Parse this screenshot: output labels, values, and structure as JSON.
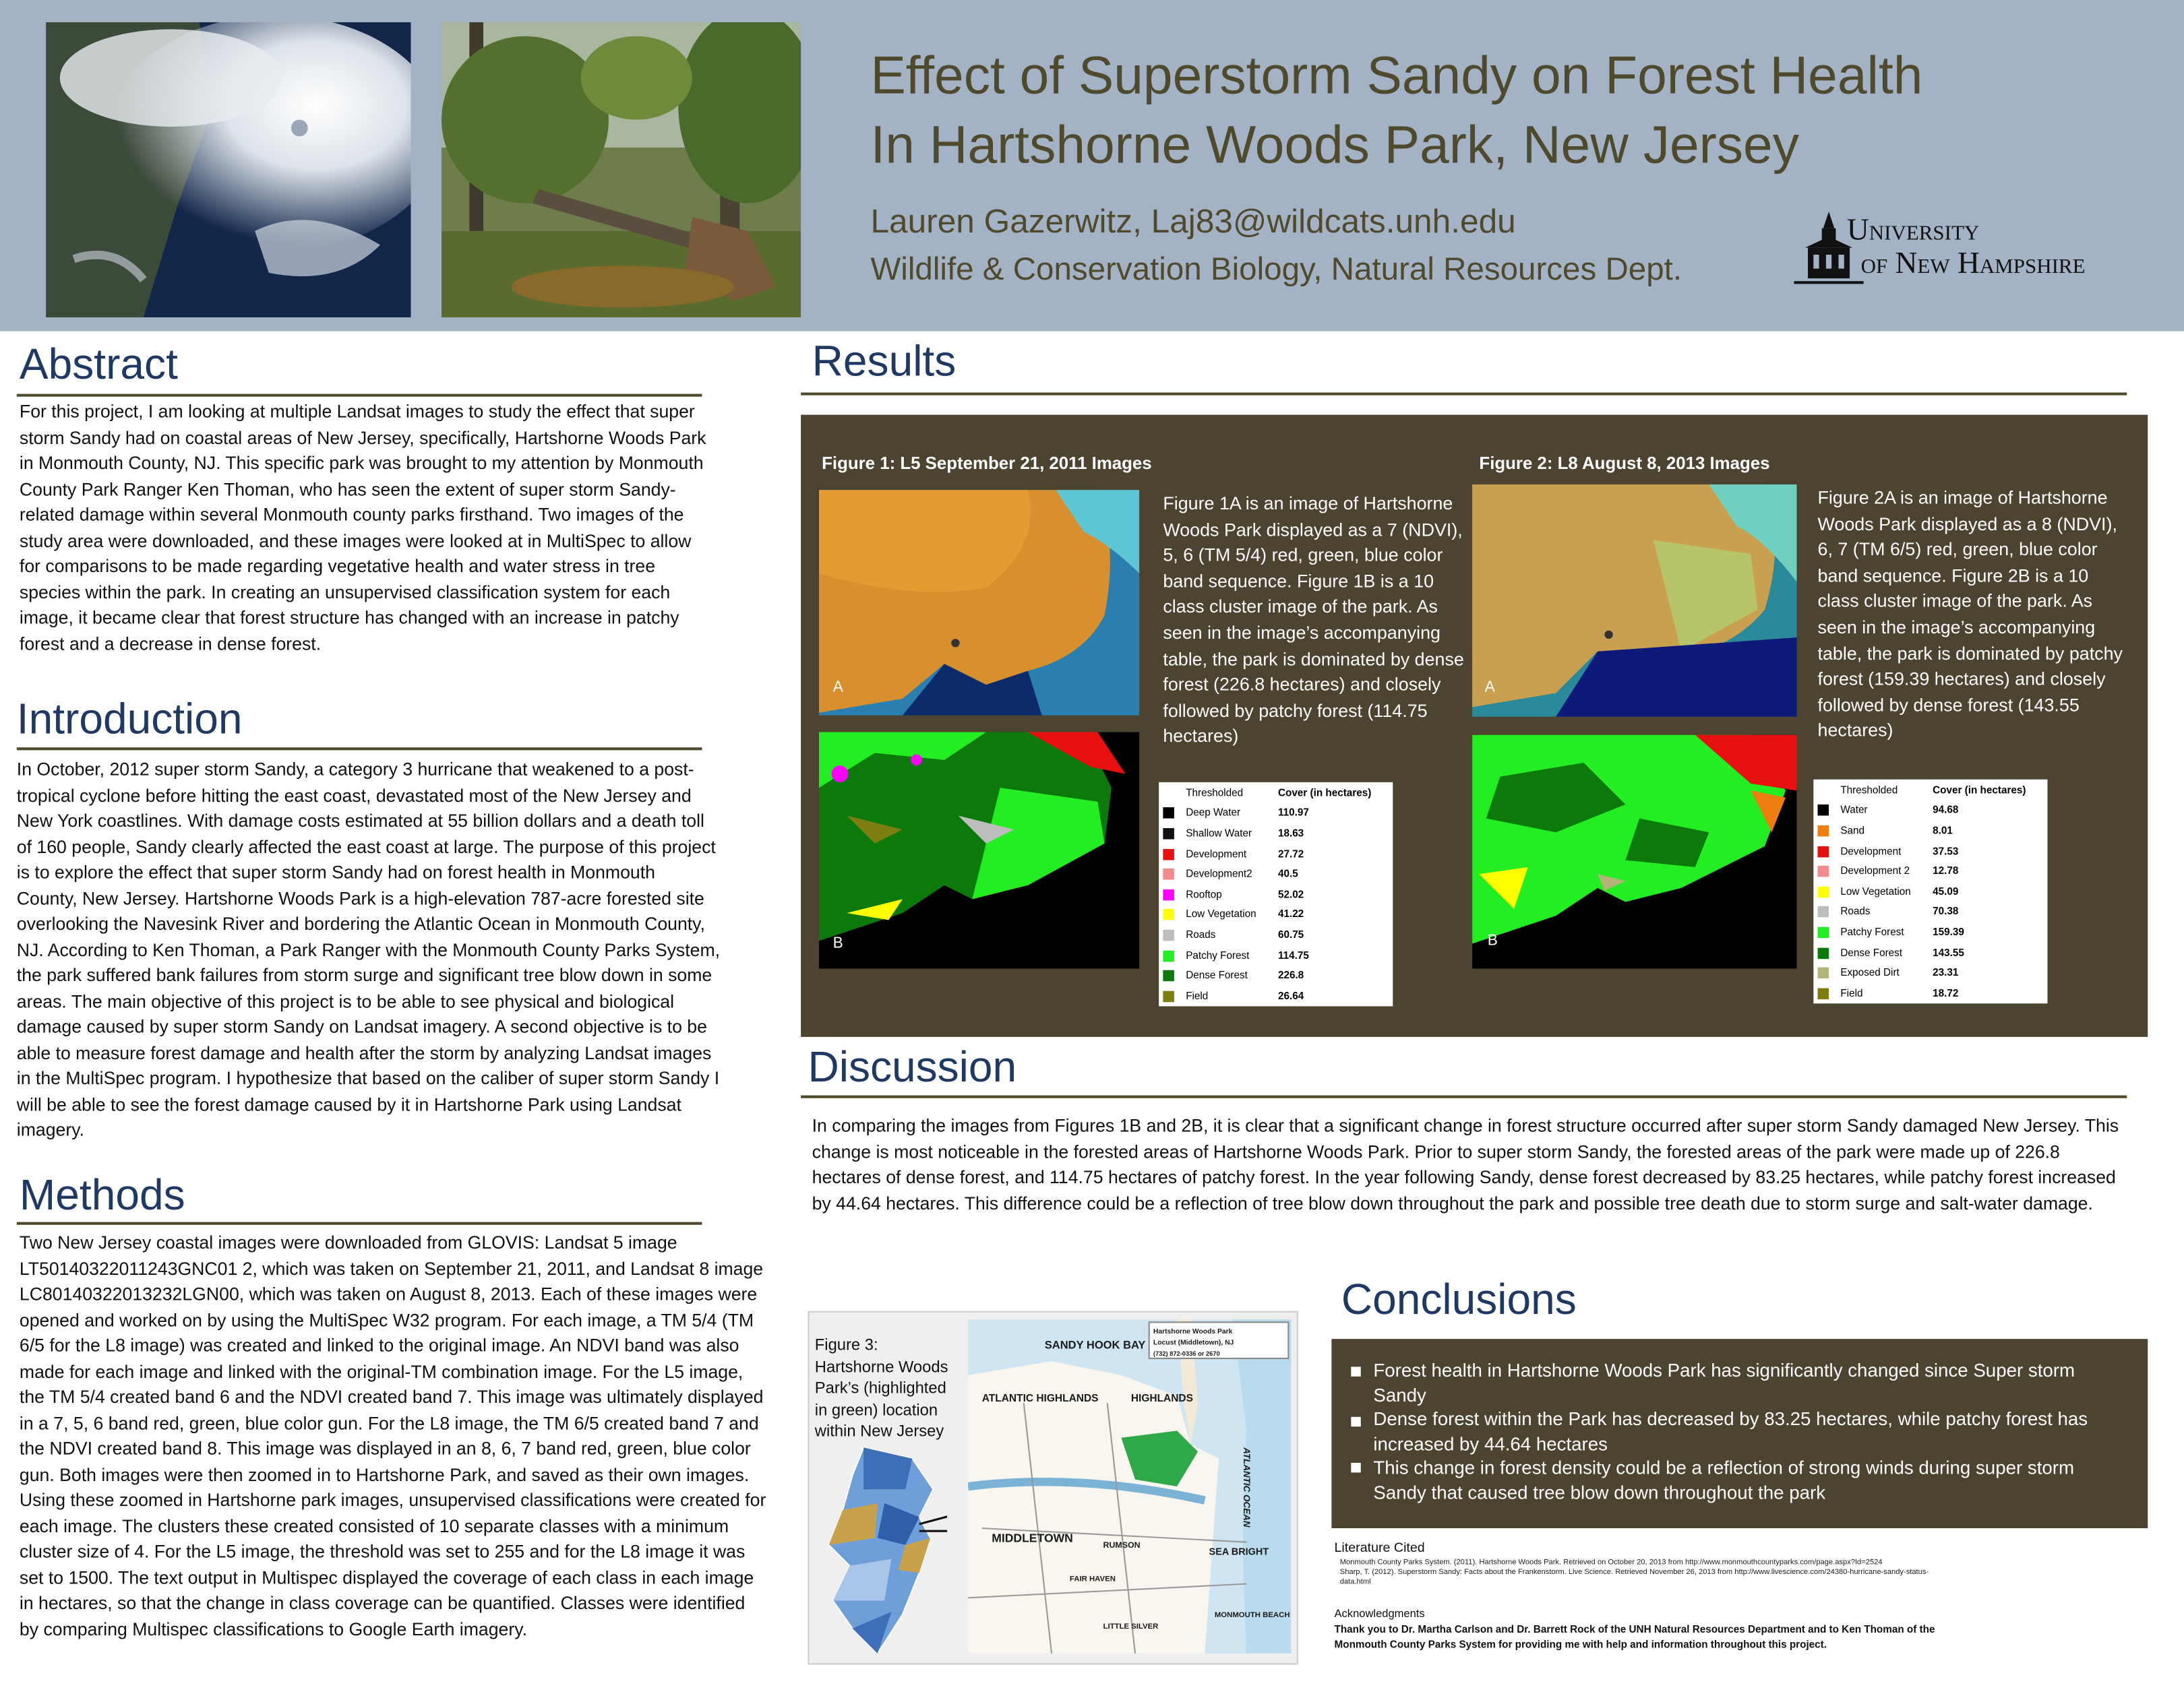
{
  "header": {
    "title": [
      "Effect of Superstorm Sandy on Forest Health",
      "In Hartshorne Woods Park, New Jersey"
    ],
    "author": "Lauren Gazerwitz, Laj83@wildcats.unh.edu",
    "affiliation": "Wildlife & Conservation Biology, Natural Resources Dept.",
    "logo": [
      "University",
      "of New Hampshire"
    ]
  },
  "abstract": {
    "heading": "Abstract",
    "text": "For this project, I am looking at multiple Landsat images to study the effect that super storm Sandy had on coastal areas of New Jersey, specifically, Hartshorne Woods Park in Monmouth County, NJ. This specific park was brought to my attention by Monmouth County Park Ranger Ken Thoman, who has seen the extent of super storm Sandy-related damage within several Monmouth county parks firsthand. Two images of the study area were downloaded, and these images were looked at in MultiSpec to allow for comparisons to be made regarding vegetative health and water stress in tree species within the park. In creating  an unsupervised classification system for each image, it became clear that forest structure has changed with an increase in patchy forest and a decrease in dense forest."
  },
  "introduction": {
    "heading": "Introduction",
    "text": "In October, 2012 super storm Sandy, a category 3 hurricane that weakened to a post-tropical cyclone before hitting the east coast, devastated most of the New Jersey and New York coastlines. With damage costs estimated at 55 billion dollars and a death toll of 160 people, Sandy clearly affected the east coast at large. The purpose of this project is to explore the effect that super storm Sandy had on forest health in Monmouth County, New Jersey. Hartshorne Woods Park is a high-elevation 787-acre forested site overlooking the Navesink River and bordering the Atlantic Ocean in Monmouth County, NJ. According to Ken Thoman, a Park Ranger with the Monmouth County Parks System, the park suffered bank failures from storm surge and significant tree blow down in some areas. The main objective of this project is to be able to see physical and biological damage caused by super storm Sandy on Landsat imagery. A second objective is to be able to measure forest damage and health after the storm by analyzing Landsat images in the MultiSpec program. I hypothesize that based on the caliber of super storm Sandy I will be able to see the forest damage caused by it in Hartshorne Park using Landsat imagery."
  },
  "methods": {
    "heading": "Methods",
    "text": "Two New Jersey coastal images were downloaded from GLOVIS: Landsat 5 image LT50140322011243GNC01 2, which was taken on September 21, 2011, and Landsat 8 image LC80140322013232LGN00, which was taken on August 8, 2013. Each of these images were opened and worked on by using the MultiSpec W32 program. For each image, a TM 5/4 (TM 6/5 for the L8 image) was created and linked to the original image. An NDVI band was also made for each image and linked with the original-TM combination image. For the L5 image, the TM 5/4 created band 6 and the NDVI created band 7. This image was ultimately displayed in a 7, 5, 6 band red, green, blue color gun. For the L8 image, the TM 6/5 created band 7 and the NDVI created band 8. This image was displayed in an 8, 6, 7 band red, green, blue color gun. Both images were then zoomed in to Hartshorne Park, and saved as their own images. Using these zoomed in Hartshorne park images, unsupervised classifications were created for each image. The clusters these created consisted of 10 separate classes with a minimum cluster size of 4. For the L5 image, the threshold was set to 255 and for the L8 image it was set to 1500. The text output in Multispec displayed the coverage of each class in each image in hectares, so that the change in class coverage can be quantified. Classes were identified by comparing Multispec classifications to Google Earth imagery."
  },
  "results": {
    "heading": "Results",
    "figures": [
      {
        "title": "Figure 1: L5 September 21, 2011 Images",
        "labels": [
          "A",
          "B"
        ],
        "caption": "Figure 1A is an image of Hartshorne Woods Park displayed as a 7 (NDVI), 5, 6 (TM 5/4) red, green, blue color band sequence. Figure 1B is a 10 class cluster image of the park. As seen in the image’s accompanying table,  the park is dominated  by dense forest (226.8 hectares) and closely followed by patchy forest (114.75 hectares)",
        "table": {
          "header": [
            "Thresholded",
            "Cover (in hectares)"
          ],
          "rows": [
            {
              "name": "Deep Water",
              "value": "110.97",
              "color": "#000000"
            },
            {
              "name": "Shallow Water",
              "value": "18.63",
              "color": "#111111"
            },
            {
              "name": "Development",
              "value": "27.72",
              "color": "#e81010"
            },
            {
              "name": "Development2",
              "value": "40.5",
              "color": "#f58a8a"
            },
            {
              "name": "Rooftop",
              "value": "52.02",
              "color": "#ff00ff"
            },
            {
              "name": "Low Vegetation",
              "value": "41.22",
              "color": "#ffff00"
            },
            {
              "name": "Roads",
              "value": "60.75",
              "color": "#bdbdbd"
            },
            {
              "name": "Patchy Forest",
              "value": "114.75",
              "color": "#22ee22"
            },
            {
              "name": "Dense Forest",
              "value": "226.8",
              "color": "#0b7a0b"
            },
            {
              "name": "Field",
              "value": "26.64",
              "color": "#7d7d10"
            }
          ]
        }
      },
      {
        "title": "Figure 2: L8 August 8, 2013 Images",
        "labels": [
          "A",
          "B"
        ],
        "caption": "Figure 2A is an image of Hartshorne Woods Park displayed as a 8 (NDVI), 6, 7 (TM 6/5) red, green, blue color band sequence. Figure 2B is a 10 class cluster image of the park. As seen in the image’s accompanying table, the park is dominated by patchy forest (159.39 hectares) and closely followed by dense forest (143.55 hectares)",
        "table": {
          "header": [
            "Thresholded",
            "Cover (in hectares)"
          ],
          "rows": [
            {
              "name": "Water",
              "value": "94.68",
              "color": "#000000"
            },
            {
              "name": "Sand",
              "value": "8.01",
              "color": "#f07d10"
            },
            {
              "name": "Development",
              "value": "37.53",
              "color": "#e81010"
            },
            {
              "name": "Development 2",
              "value": "12.78",
              "color": "#f58a8a"
            },
            {
              "name": "Low Vegetation",
              "value": "45.09",
              "color": "#ffff00"
            },
            {
              "name": "Roads",
              "value": "70.38",
              "color": "#bdbdbd"
            },
            {
              "name": "Patchy Forest",
              "value": "159.39",
              "color": "#22ee22"
            },
            {
              "name": "Dense Forest",
              "value": "143.55",
              "color": "#0b7a0b"
            },
            {
              "name": "Exposed Dirt",
              "value": "23.31",
              "color": "#b3b37a"
            },
            {
              "name": "Field",
              "value": "18.72",
              "color": "#7d7d10"
            }
          ]
        }
      }
    ]
  },
  "discussion": {
    "heading": "Discussion",
    "text": "In comparing the images from Figures 1B and 2B, it is clear that a significant change in forest structure occurred after super storm Sandy  damaged New Jersey. This change is most noticeable in the forested areas of Hartshorne Woods Park. Prior to super storm Sandy, the forested areas of the park were made up of 226.8 hectares of dense forest, and 114.75 hectares of patchy forest. In the year following Sandy, dense forest decreased by 83.25 hectares, while patchy forest increased by 44.64 hectares. This difference could be a reflection of tree blow down throughout the park and possible tree death due to storm surge and salt-water damage."
  },
  "figure3": {
    "caption": "Figure 3: Hartshorne Woods Park’s (highlighted in green) location within New Jersey",
    "map_labels": [
      "Sandy Hook Bay",
      "Atlantic Highlands",
      "Highlands",
      "Middletown",
      "Sea Bright",
      "Atlantic Ocean",
      "Rumson",
      "Fair Haven",
      "Little Silver",
      "Monmouth Beach",
      "Hartshorne Woods Park",
      "Locust (Middletown), NJ",
      "(732) 872-0336 or 2670"
    ]
  },
  "conclusions": {
    "heading": "Conclusions",
    "bullets": [
      "Forest health in Hartshorne Woods Park has significantly changed since Super storm Sandy",
      "Dense forest within the Park has decreased by 83.25 hectares, while patchy forest has increased by 44.64 hectares",
      "This change in forest density could be a reflection of strong winds during super storm Sandy that caused tree blow down throughout the park"
    ]
  },
  "literature": {
    "heading": "Literature Cited",
    "entries": [
      "Monmouth County Parks System. (2011). Hartshorne Woods Park. Retrieved on October 20, 2013 from http://www.monmouthcountyparks.com/page.aspx?Id=2524",
      "Sharp, T. (2012). Superstorm Sandy: Facts about the Frankenstorm. Live Science. Retrieved November 26, 2013 from http://www.livescience.com/24380-hurricane-sandy-status-data.html"
    ]
  },
  "acknowledgments": {
    "heading": "Acknowledgments",
    "text": "Thank you to Dr. Martha Carlson and Dr. Barrett Rock of the UNH Natural Resources Department and to Ken Thoman of the Monmouth County Parks System for providing me with help and information throughout this project."
  }
}
